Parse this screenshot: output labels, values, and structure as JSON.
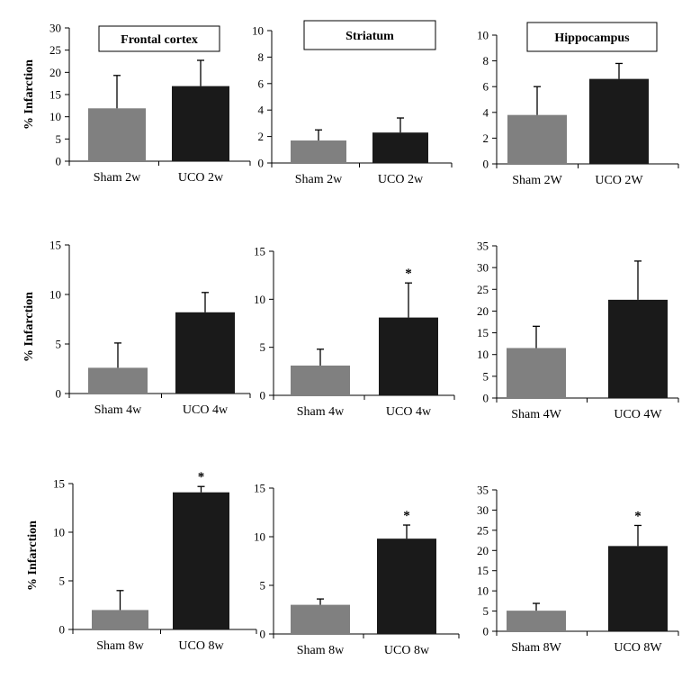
{
  "figure": {
    "ylabel": "% Infarction",
    "colors": {
      "sham": "#808080",
      "uco": "#1a1a1a",
      "axis": "#000000"
    }
  },
  "chart_data": [
    {
      "type": "bar",
      "title": "Frontal cortex",
      "ylabel": "% Infarction",
      "categories": [
        "Sham 2w",
        "UCO 2w"
      ],
      "values": [
        11.9,
        16.9
      ],
      "errors": [
        7.4,
        5.8
      ],
      "significant": [
        false,
        false
      ],
      "ylim": [
        0,
        30
      ],
      "yticks": [
        0,
        5,
        10,
        15,
        20,
        25,
        30
      ]
    },
    {
      "type": "bar",
      "title": "Striatum",
      "ylabel": "",
      "categories": [
        "Sham 2w",
        "UCO 2w"
      ],
      "values": [
        1.7,
        2.3
      ],
      "errors": [
        0.8,
        1.1
      ],
      "significant": [
        false,
        false
      ],
      "ylim": [
        0,
        10
      ],
      "yticks": [
        0,
        2,
        4,
        6,
        8,
        10
      ]
    },
    {
      "type": "bar",
      "title": "Hippocampus",
      "ylabel": "",
      "categories": [
        "Sham 2W",
        "UCO 2W"
      ],
      "values": [
        3.8,
        6.6
      ],
      "errors": [
        2.2,
        1.2
      ],
      "significant": [
        false,
        false
      ],
      "ylim": [
        0,
        10
      ],
      "yticks": [
        0,
        2,
        4,
        6,
        8,
        10
      ]
    },
    {
      "type": "bar",
      "title": "",
      "ylabel": "% Infarction",
      "categories": [
        "Sham 4w",
        "UCO 4w"
      ],
      "values": [
        2.6,
        8.2
      ],
      "errors": [
        2.5,
        2.0
      ],
      "significant": [
        false,
        false
      ],
      "ylim": [
        0,
        15
      ],
      "yticks": [
        0,
        5,
        10,
        15
      ]
    },
    {
      "type": "bar",
      "title": "",
      "ylabel": "",
      "categories": [
        "Sham 4w",
        "UCO 4w"
      ],
      "values": [
        3.1,
        8.1
      ],
      "errors": [
        1.7,
        3.6
      ],
      "significant": [
        false,
        true
      ],
      "ylim": [
        0,
        15
      ],
      "yticks": [
        0,
        5,
        10,
        15
      ]
    },
    {
      "type": "bar",
      "title": "",
      "ylabel": "",
      "categories": [
        "Sham 4W",
        "UCO 4W"
      ],
      "values": [
        11.5,
        22.6
      ],
      "errors": [
        5.0,
        8.9
      ],
      "significant": [
        false,
        false
      ],
      "ylim": [
        0,
        35
      ],
      "yticks": [
        0,
        5,
        10,
        15,
        20,
        25,
        30,
        35
      ]
    },
    {
      "type": "bar",
      "title": "",
      "ylabel": "% Infarction",
      "categories": [
        "Sham 8w",
        "UCO 8w"
      ],
      "values": [
        2.0,
        14.1
      ],
      "errors": [
        2.0,
        0.6
      ],
      "significant": [
        false,
        true
      ],
      "ylim": [
        0,
        15
      ],
      "yticks": [
        0,
        5,
        10,
        15
      ]
    },
    {
      "type": "bar",
      "title": "",
      "ylabel": "",
      "categories": [
        "Sham 8w",
        "UCO 8w"
      ],
      "values": [
        3.0,
        9.8
      ],
      "errors": [
        0.6,
        1.4
      ],
      "significant": [
        false,
        true
      ],
      "ylim": [
        0,
        15
      ],
      "yticks": [
        0,
        5,
        10,
        15
      ]
    },
    {
      "type": "bar",
      "title": "",
      "ylabel": "",
      "categories": [
        "Sham 8W",
        "UCO 8W"
      ],
      "values": [
        5.1,
        21.1
      ],
      "errors": [
        1.8,
        5.1
      ],
      "significant": [
        false,
        true
      ],
      "ylim": [
        0,
        35
      ],
      "yticks": [
        0,
        5,
        10,
        15,
        20,
        25,
        30,
        35
      ]
    }
  ]
}
